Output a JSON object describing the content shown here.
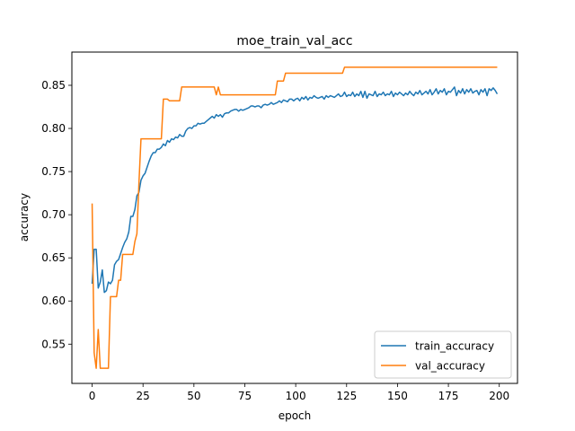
{
  "chart_data": {
    "type": "line",
    "title": "moe_train_val_acc",
    "xlabel": "epoch",
    "ylabel": "accuracy",
    "xlim": [
      -9.95,
      208.95
    ],
    "ylim": [
      0.5045,
      0.8885
    ],
    "xticks": [
      0,
      25,
      50,
      75,
      100,
      125,
      150,
      175,
      200
    ],
    "yticks": [
      0.55,
      0.6,
      0.65,
      0.7,
      0.75,
      0.8,
      0.85
    ],
    "ytick_labels": [
      "0.55",
      "0.60",
      "0.65",
      "0.70",
      "0.75",
      "0.80",
      "0.85"
    ],
    "grid": false,
    "legend_position": "bottom-right",
    "series": [
      {
        "name": "train_accuracy",
        "color": "#1f77b4",
        "points": [
          [
            0,
            0.62
          ],
          [
            1,
            0.66
          ],
          [
            2,
            0.66
          ],
          [
            3,
            0.615
          ],
          [
            4,
            0.622
          ],
          [
            5,
            0.636
          ],
          [
            6,
            0.61
          ],
          [
            7,
            0.612
          ],
          [
            8,
            0.622
          ],
          [
            9,
            0.62
          ],
          [
            10,
            0.624
          ],
          [
            11,
            0.642
          ],
          [
            12,
            0.646
          ],
          [
            13,
            0.648
          ],
          [
            14,
            0.655
          ],
          [
            15,
            0.662
          ],
          [
            16,
            0.668
          ],
          [
            17,
            0.672
          ],
          [
            18,
            0.68
          ],
          [
            19,
            0.698
          ],
          [
            20,
            0.698
          ],
          [
            21,
            0.706
          ],
          [
            22,
            0.722
          ],
          [
            23,
            0.726
          ],
          [
            24,
            0.74
          ],
          [
            25,
            0.745
          ],
          [
            26,
            0.748
          ],
          [
            27,
            0.755
          ],
          [
            28,
            0.762
          ],
          [
            29,
            0.768
          ],
          [
            30,
            0.772
          ],
          [
            31,
            0.772
          ],
          [
            32,
            0.776
          ],
          [
            33,
            0.776
          ],
          [
            34,
            0.778
          ],
          [
            35,
            0.782
          ],
          [
            36,
            0.78
          ],
          [
            37,
            0.786
          ],
          [
            38,
            0.784
          ],
          [
            39,
            0.788
          ],
          [
            40,
            0.787
          ],
          [
            41,
            0.79
          ],
          [
            42,
            0.789
          ],
          [
            43,
            0.793
          ],
          [
            44,
            0.791
          ],
          [
            45,
            0.791
          ],
          [
            46,
            0.797
          ],
          [
            47,
            0.8
          ],
          [
            48,
            0.801
          ],
          [
            49,
            0.8
          ],
          [
            50,
            0.803
          ],
          [
            51,
            0.803
          ],
          [
            52,
            0.806
          ],
          [
            53,
            0.805
          ],
          [
            54,
            0.806
          ],
          [
            55,
            0.806
          ],
          [
            56,
            0.808
          ],
          [
            57,
            0.81
          ],
          [
            58,
            0.812
          ],
          [
            59,
            0.814
          ],
          [
            60,
            0.812
          ],
          [
            61,
            0.816
          ],
          [
            62,
            0.814
          ],
          [
            63,
            0.816
          ],
          [
            64,
            0.813
          ],
          [
            65,
            0.817
          ],
          [
            66,
            0.818
          ],
          [
            67,
            0.818
          ],
          [
            68,
            0.82
          ],
          [
            69,
            0.821
          ],
          [
            70,
            0.822
          ],
          [
            71,
            0.822
          ],
          [
            72,
            0.82
          ],
          [
            73,
            0.822
          ],
          [
            74,
            0.821
          ],
          [
            75,
            0.822
          ],
          [
            76,
            0.823
          ],
          [
            77,
            0.824
          ],
          [
            78,
            0.826
          ],
          [
            79,
            0.826
          ],
          [
            80,
            0.825
          ],
          [
            81,
            0.826
          ],
          [
            82,
            0.826
          ],
          [
            83,
            0.824
          ],
          [
            84,
            0.827
          ],
          [
            85,
            0.828
          ],
          [
            86,
            0.827
          ],
          [
            87,
            0.828
          ],
          [
            88,
            0.83
          ],
          [
            89,
            0.828
          ],
          [
            90,
            0.829
          ],
          [
            91,
            0.83
          ],
          [
            92,
            0.832
          ],
          [
            93,
            0.83
          ],
          [
            94,
            0.833
          ],
          [
            95,
            0.832
          ],
          [
            96,
            0.831
          ],
          [
            97,
            0.834
          ],
          [
            98,
            0.834
          ],
          [
            99,
            0.832
          ],
          [
            100,
            0.834
          ],
          [
            101,
            0.835
          ],
          [
            102,
            0.832
          ],
          [
            103,
            0.836
          ],
          [
            104,
            0.834
          ],
          [
            105,
            0.837
          ],
          [
            106,
            0.833
          ],
          [
            107,
            0.836
          ],
          [
            108,
            0.835
          ],
          [
            109,
            0.838
          ],
          [
            110,
            0.836
          ],
          [
            111,
            0.835
          ],
          [
            112,
            0.836
          ],
          [
            113,
            0.837
          ],
          [
            114,
            0.834
          ],
          [
            115,
            0.838
          ],
          [
            116,
            0.836
          ],
          [
            117,
            0.838
          ],
          [
            118,
            0.837
          ],
          [
            119,
            0.836
          ],
          [
            120,
            0.838
          ],
          [
            121,
            0.84
          ],
          [
            122,
            0.837
          ],
          [
            123,
            0.838
          ],
          [
            124,
            0.842
          ],
          [
            125,
            0.837
          ],
          [
            126,
            0.839
          ],
          [
            127,
            0.838
          ],
          [
            128,
            0.842
          ],
          [
            129,
            0.837
          ],
          [
            130,
            0.84
          ],
          [
            131,
            0.838
          ],
          [
            132,
            0.843
          ],
          [
            133,
            0.836
          ],
          [
            134,
            0.843
          ],
          [
            135,
            0.835
          ],
          [
            136,
            0.84
          ],
          [
            137,
            0.839
          ],
          [
            138,
            0.838
          ],
          [
            139,
            0.843
          ],
          [
            140,
            0.837
          ],
          [
            141,
            0.84
          ],
          [
            142,
            0.839
          ],
          [
            143,
            0.842
          ],
          [
            144,
            0.838
          ],
          [
            145,
            0.84
          ],
          [
            146,
            0.839
          ],
          [
            147,
            0.843
          ],
          [
            148,
            0.837
          ],
          [
            149,
            0.841
          ],
          [
            150,
            0.839
          ],
          [
            151,
            0.842
          ],
          [
            152,
            0.84
          ],
          [
            153,
            0.838
          ],
          [
            154,
            0.841
          ],
          [
            155,
            0.839
          ],
          [
            156,
            0.843
          ],
          [
            157,
            0.84
          ],
          [
            158,
            0.838
          ],
          [
            159,
            0.842
          ],
          [
            160,
            0.84
          ],
          [
            161,
            0.844
          ],
          [
            162,
            0.839
          ],
          [
            163,
            0.841
          ],
          [
            164,
            0.843
          ],
          [
            165,
            0.84
          ],
          [
            166,
            0.845
          ],
          [
            167,
            0.839
          ],
          [
            168,
            0.842
          ],
          [
            169,
            0.846
          ],
          [
            170,
            0.84
          ],
          [
            171,
            0.844
          ],
          [
            172,
            0.842
          ],
          [
            173,
            0.846
          ],
          [
            174,
            0.839
          ],
          [
            175,
            0.843
          ],
          [
            176,
            0.842
          ],
          [
            177,
            0.845
          ],
          [
            178,
            0.848
          ],
          [
            179,
            0.838
          ],
          [
            180,
            0.844
          ],
          [
            181,
            0.841
          ],
          [
            182,
            0.846
          ],
          [
            183,
            0.84
          ],
          [
            184,
            0.845
          ],
          [
            185,
            0.842
          ],
          [
            186,
            0.846
          ],
          [
            187,
            0.841
          ],
          [
            188,
            0.843
          ],
          [
            189,
            0.844
          ],
          [
            190,
            0.839
          ],
          [
            191,
            0.845
          ],
          [
            192,
            0.842
          ],
          [
            193,
            0.846
          ],
          [
            194,
            0.838
          ],
          [
            195,
            0.846
          ],
          [
            196,
            0.844
          ],
          [
            197,
            0.847
          ],
          [
            198,
            0.844
          ],
          [
            199,
            0.84
          ]
        ]
      },
      {
        "name": "val_accuracy",
        "color": "#ff7f0e",
        "points": [
          [
            0,
            0.713
          ],
          [
            1,
            0.54
          ],
          [
            2,
            0.522
          ],
          [
            3,
            0.567
          ],
          [
            4,
            0.522
          ],
          [
            5,
            0.522
          ],
          [
            6,
            0.522
          ],
          [
            7,
            0.522
          ],
          [
            8,
            0.522
          ],
          [
            9,
            0.605
          ],
          [
            10,
            0.605
          ],
          [
            11,
            0.605
          ],
          [
            12,
            0.605
          ],
          [
            13,
            0.624
          ],
          [
            14,
            0.624
          ],
          [
            15,
            0.654
          ],
          [
            16,
            0.654
          ],
          [
            17,
            0.654
          ],
          [
            18,
            0.654
          ],
          [
            19,
            0.654
          ],
          [
            20,
            0.654
          ],
          [
            21,
            0.669
          ],
          [
            22,
            0.678
          ],
          [
            23,
            0.737
          ],
          [
            24,
            0.788
          ],
          [
            25,
            0.788
          ],
          [
            26,
            0.788
          ],
          [
            27,
            0.788
          ],
          [
            28,
            0.788
          ],
          [
            29,
            0.788
          ],
          [
            30,
            0.788
          ],
          [
            31,
            0.788
          ],
          [
            32,
            0.788
          ],
          [
            33,
            0.788
          ],
          [
            34,
            0.788
          ],
          [
            35,
            0.834
          ],
          [
            36,
            0.834
          ],
          [
            37,
            0.834
          ],
          [
            38,
            0.832
          ],
          [
            39,
            0.832
          ],
          [
            40,
            0.832
          ],
          [
            41,
            0.832
          ],
          [
            42,
            0.832
          ],
          [
            43,
            0.832
          ],
          [
            44,
            0.848
          ],
          [
            45,
            0.848
          ],
          [
            50,
            0.848
          ],
          [
            55,
            0.848
          ],
          [
            60,
            0.848
          ],
          [
            61,
            0.839
          ],
          [
            62,
            0.848
          ],
          [
            63,
            0.839
          ],
          [
            64,
            0.839
          ],
          [
            70,
            0.839
          ],
          [
            80,
            0.839
          ],
          [
            90,
            0.839
          ],
          [
            91,
            0.855
          ],
          [
            92,
            0.855
          ],
          [
            93,
            0.855
          ],
          [
            94,
            0.855
          ],
          [
            95,
            0.864
          ],
          [
            100,
            0.864
          ],
          [
            110,
            0.864
          ],
          [
            120,
            0.864
          ],
          [
            123,
            0.864
          ],
          [
            124,
            0.871
          ],
          [
            130,
            0.871
          ],
          [
            150,
            0.871
          ],
          [
            175,
            0.871
          ],
          [
            199,
            0.871
          ]
        ]
      }
    ]
  }
}
